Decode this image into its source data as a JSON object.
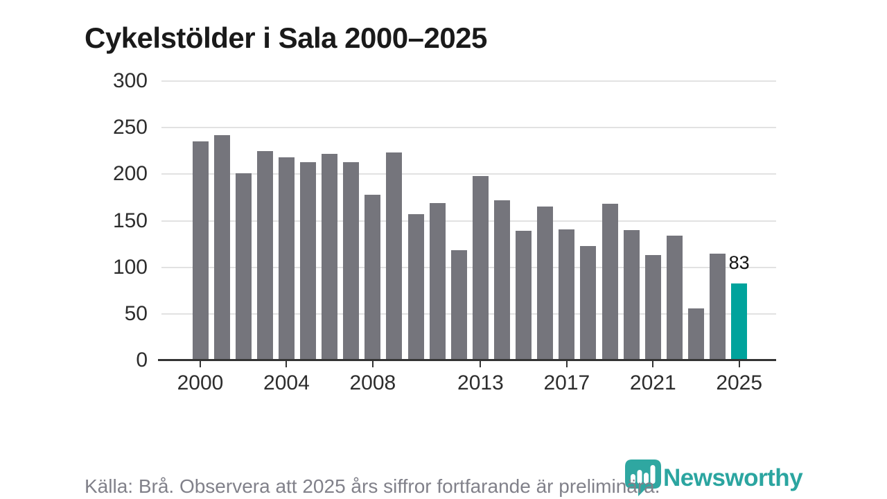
{
  "header": {
    "title": "Cykelstölder i Sala 2000–2025"
  },
  "footer": {
    "source_text": "Källa: Brå. Observera att 2025 års siffror fortfarande är preliminära.",
    "brand": "Newsworthy"
  },
  "colors": {
    "bar": "#75757c",
    "highlight": "#00a39c",
    "brand": "#2fa7a1",
    "gridline": "#e2e2e2",
    "axis": "#333333",
    "tick_label": "#2d2d2d",
    "title": "#1a1a1a",
    "footer_text": "#81818a",
    "value_label": "#141414"
  },
  "chart_data": {
    "type": "bar",
    "title": "Cykelstölder i Sala 2000–2025",
    "xlabel": "",
    "ylabel": "",
    "categories": [
      "2000",
      "2001",
      "2002",
      "2003",
      "2004",
      "2005",
      "2006",
      "2007",
      "2008",
      "2009",
      "2010",
      "2011",
      "2012",
      "2013",
      "2014",
      "2015",
      "2016",
      "2017",
      "2018",
      "2019",
      "2020",
      "2021",
      "2022",
      "2023",
      "2024",
      "2025"
    ],
    "values": [
      235,
      242,
      201,
      225,
      218,
      213,
      222,
      213,
      178,
      223,
      157,
      169,
      118,
      198,
      172,
      139,
      165,
      141,
      123,
      168,
      140,
      113,
      134,
      56,
      115,
      83
    ],
    "highlight": {
      "index": 25,
      "category": "2025",
      "label": "83"
    },
    "x_tick_labels": [
      "2000",
      "2004",
      "2008",
      "2013",
      "2017",
      "2021",
      "2025"
    ],
    "y_ticks": [
      0,
      50,
      100,
      150,
      200,
      250,
      300
    ],
    "ylim": [
      0,
      300
    ],
    "grid": "horizontal",
    "legend": "none"
  }
}
